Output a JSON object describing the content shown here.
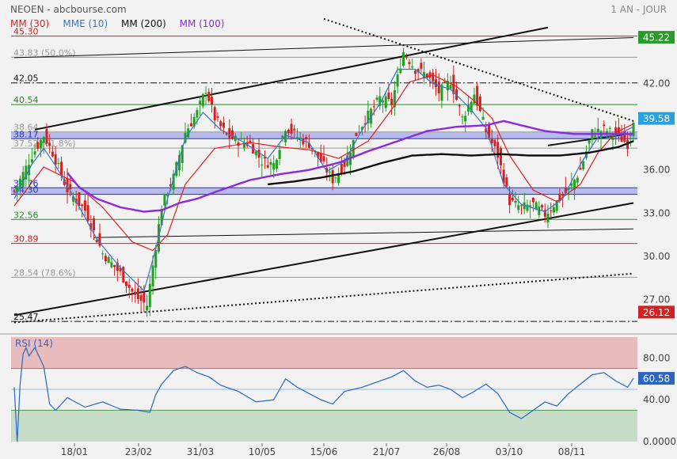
{
  "header": {
    "title": "NEOEN - abcbourse.com",
    "period": "1 AN - JOUR"
  },
  "legend": [
    {
      "label": "MM (30)",
      "color": "#e02020"
    },
    {
      "label": "MME (10)",
      "color": "#3377cc"
    },
    {
      "label": "MM (200)",
      "color": "#111111"
    },
    {
      "label": "MM (100)",
      "color": "#8a2be2"
    }
  ],
  "chart_data": {
    "type": "candlestick",
    "x_tick_labels": [
      "18/01",
      "23/02",
      "31/03",
      "10/05",
      "15/06",
      "21/07",
      "26/08",
      "03/10",
      "08/11"
    ],
    "y_axis_ticks": [
      27.0,
      30.0,
      33.0,
      36.0,
      42.0
    ],
    "ylim": [
      24.6,
      46.6
    ],
    "last_price": 39.58,
    "period_high": 45.22,
    "period_low": 26.12,
    "price_levels": [
      {
        "label": "45.30",
        "value": 45.3,
        "color": "#cc2222",
        "style": "solid"
      },
      {
        "label": "43.83 (50.0%)",
        "value": 43.83,
        "color": "#999999",
        "style": "solid"
      },
      {
        "label": "42.05",
        "value": 42.05,
        "color": "#111111",
        "style": "dashdot"
      },
      {
        "label": "40.54",
        "value": 40.54,
        "color": "#2a8a2a",
        "style": "solid"
      },
      {
        "label": "38.64",
        "value": 38.64,
        "color": "#999999",
        "style": "solid"
      },
      {
        "label": "38.17",
        "value": 38.17,
        "color": "#2233bb",
        "style": "solid"
      },
      {
        "label": "37.52 (61.8%)",
        "value": 37.52,
        "color": "#999999",
        "style": "solid"
      },
      {
        "label": "34.76",
        "value": 34.76,
        "color": "#2233bb",
        "style": "solid"
      },
      {
        "label": "34.30",
        "value": 34.3,
        "color": "#2233bb",
        "style": "solid"
      },
      {
        "label": "32.56",
        "value": 32.56,
        "color": "#2a8a2a",
        "style": "solid"
      },
      {
        "label": "30.89",
        "value": 30.89,
        "color": "#cc2222",
        "style": "solid"
      },
      {
        "label": "28.54 (78.6%)",
        "value": 28.54,
        "color": "#999999",
        "style": "solid"
      },
      {
        "label": "25.47",
        "value": 25.47,
        "color": "#111111",
        "style": "dashdot"
      }
    ],
    "bands": [
      {
        "from": 38.17,
        "to": 38.64,
        "color": "#4a55e0"
      },
      {
        "from": 34.3,
        "to": 34.76,
        "color": "#4a55e0"
      }
    ],
    "ohlc_anchor_closes": [
      [
        0,
        34.5
      ],
      [
        6,
        37.0
      ],
      [
        10,
        38.4
      ],
      [
        13,
        37.2
      ],
      [
        18,
        34.6
      ],
      [
        24,
        33.2
      ],
      [
        30,
        30.2
      ],
      [
        36,
        28.8
      ],
      [
        41,
        27.2
      ],
      [
        45,
        26.6
      ],
      [
        50,
        33.5
      ],
      [
        54,
        35.5
      ],
      [
        58,
        38.6
      ],
      [
        62,
        40.0
      ],
      [
        65,
        41.6
      ],
      [
        68,
        39.6
      ],
      [
        72,
        38.4
      ],
      [
        76,
        38.0
      ],
      [
        80,
        37.8
      ],
      [
        84,
        36.6
      ],
      [
        88,
        36.4
      ],
      [
        92,
        39.0
      ],
      [
        96,
        38.3
      ],
      [
        100,
        37.8
      ],
      [
        104,
        36.6
      ],
      [
        108,
        35.3
      ],
      [
        112,
        36.4
      ],
      [
        116,
        38.5
      ],
      [
        120,
        39.8
      ],
      [
        124,
        41.0
      ],
      [
        128,
        40.6
      ],
      [
        132,
        44.2
      ],
      [
        136,
        43.0
      ],
      [
        140,
        42.6
      ],
      [
        144,
        41.4
      ],
      [
        148,
        42.2
      ],
      [
        152,
        39.6
      ],
      [
        156,
        41.3
      ],
      [
        160,
        38.7
      ],
      [
        164,
        37.0
      ],
      [
        168,
        33.8
      ],
      [
        172,
        33.4
      ],
      [
        176,
        33.6
      ],
      [
        180,
        32.9
      ],
      [
        184,
        33.8
      ],
      [
        188,
        34.6
      ],
      [
        192,
        36.0
      ],
      [
        196,
        38.6
      ],
      [
        200,
        38.8
      ],
      [
        204,
        38.5
      ],
      [
        208,
        37.8
      ],
      [
        210,
        39.58
      ]
    ],
    "indicators": {
      "mm30_closes": [
        [
          0,
          33.5
        ],
        [
          10,
          36.2
        ],
        [
          20,
          35.2
        ],
        [
          30,
          33.4
        ],
        [
          40,
          31.0
        ],
        [
          47,
          30.4
        ],
        [
          52,
          31.5
        ],
        [
          58,
          35.0
        ],
        [
          68,
          37.5
        ],
        [
          80,
          37.9
        ],
        [
          90,
          37.6
        ],
        [
          100,
          37.4
        ],
        [
          110,
          36.8
        ],
        [
          120,
          38.0
        ],
        [
          128,
          40.2
        ],
        [
          134,
          42.1
        ],
        [
          142,
          42.6
        ],
        [
          150,
          41.8
        ],
        [
          156,
          40.8
        ],
        [
          162,
          39.6
        ],
        [
          168,
          37.0
        ],
        [
          176,
          34.6
        ],
        [
          184,
          33.8
        ],
        [
          192,
          35.0
        ],
        [
          198,
          37.2
        ],
        [
          204,
          38.6
        ],
        [
          210,
          39.2
        ]
      ],
      "mme10_closes": [
        [
          0,
          34.0
        ],
        [
          6,
          36.4
        ],
        [
          10,
          37.5
        ],
        [
          14,
          36.3
        ],
        [
          20,
          34.2
        ],
        [
          28,
          31.2
        ],
        [
          36,
          29.2
        ],
        [
          44,
          27.6
        ],
        [
          48,
          30.5
        ],
        [
          52,
          34.0
        ],
        [
          58,
          38.2
        ],
        [
          64,
          40.0
        ],
        [
          70,
          38.8
        ],
        [
          78,
          37.9
        ],
        [
          86,
          36.8
        ],
        [
          92,
          38.4
        ],
        [
          100,
          37.9
        ],
        [
          106,
          35.9
        ],
        [
          112,
          36.6
        ],
        [
          118,
          38.8
        ],
        [
          124,
          40.6
        ],
        [
          130,
          43.0
        ],
        [
          136,
          43.0
        ],
        [
          142,
          42.0
        ],
        [
          148,
          41.6
        ],
        [
          154,
          40.4
        ],
        [
          160,
          38.9
        ],
        [
          166,
          35.0
        ],
        [
          172,
          33.6
        ],
        [
          180,
          33.1
        ],
        [
          186,
          34.0
        ],
        [
          192,
          36.4
        ],
        [
          198,
          38.3
        ],
        [
          204,
          38.4
        ],
        [
          210,
          39.0
        ]
      ],
      "mm200_closes": [
        [
          86,
          35.0
        ],
        [
          95,
          35.2
        ],
        [
          105,
          35.5
        ],
        [
          115,
          35.9
        ],
        [
          125,
          36.5
        ],
        [
          135,
          37.0
        ],
        [
          145,
          37.1
        ],
        [
          155,
          37.0
        ],
        [
          165,
          37.1
        ],
        [
          175,
          37.0
        ],
        [
          185,
          37.0
        ],
        [
          195,
          37.2
        ],
        [
          205,
          37.6
        ],
        [
          210,
          38.0
        ]
      ],
      "mm100_closes": [
        [
          18,
          35.8
        ],
        [
          22,
          34.8
        ],
        [
          28,
          34.0
        ],
        [
          36,
          33.4
        ],
        [
          44,
          33.1
        ],
        [
          50,
          33.2
        ],
        [
          56,
          33.7
        ],
        [
          62,
          34.0
        ],
        [
          70,
          34.6
        ],
        [
          80,
          35.3
        ],
        [
          90,
          35.7
        ],
        [
          100,
          36.0
        ],
        [
          110,
          36.5
        ],
        [
          120,
          37.3
        ],
        [
          130,
          38.0
        ],
        [
          140,
          38.7
        ],
        [
          150,
          39.0
        ],
        [
          160,
          39.1
        ],
        [
          166,
          39.4
        ],
        [
          172,
          39.1
        ],
        [
          180,
          38.7
        ],
        [
          190,
          38.5
        ],
        [
          200,
          38.5
        ],
        [
          210,
          38.5
        ]
      ]
    },
    "trend_lines": [
      {
        "from": [
          7,
          38.8
        ],
        "to": [
          181,
          45.9
        ],
        "style": "solid"
      },
      {
        "from": [
          0,
          25.9
        ],
        "to": [
          210,
          33.7
        ],
        "style": "solid"
      },
      {
        "from": [
          27,
          31.3
        ],
        "to": [
          210,
          31.9
        ],
        "style": "solid-thin"
      },
      {
        "from": [
          0,
          43.8
        ],
        "to": [
          210,
          45.2
        ],
        "style": "solid-thin"
      },
      {
        "from": [
          0,
          25.4
        ],
        "to": [
          210,
          28.8
        ],
        "style": "dotted"
      },
      {
        "from": [
          105,
          46.5
        ],
        "to": [
          210,
          39.4
        ],
        "style": "dotted"
      },
      {
        "from": [
          181,
          37.7
        ],
        "to": [
          208,
          38.5
        ],
        "style": "solid"
      }
    ],
    "rsi": {
      "title": "RSI (14)",
      "last_value": 60.58,
      "ylim": [
        0,
        100
      ],
      "y_axis_ticks": [
        {
          "value": 80,
          "label": "80.00"
        },
        {
          "value": 40,
          "label": "40.00"
        },
        {
          "value": 0,
          "label": "0.0000"
        }
      ],
      "overbought": 70,
      "oversold": 30,
      "anchors": [
        [
          0,
          52
        ],
        [
          1,
          0
        ],
        [
          2,
          55
        ],
        [
          3,
          84
        ],
        [
          4,
          90
        ],
        [
          5,
          82
        ],
        [
          6,
          86
        ],
        [
          7,
          90
        ],
        [
          8,
          84
        ],
        [
          9,
          78
        ],
        [
          10,
          72
        ],
        [
          12,
          36
        ],
        [
          14,
          30
        ],
        [
          18,
          42
        ],
        [
          24,
          33
        ],
        [
          30,
          38
        ],
        [
          36,
          31
        ],
        [
          42,
          30
        ],
        [
          46,
          28
        ],
        [
          48,
          45
        ],
        [
          50,
          55
        ],
        [
          54,
          68
        ],
        [
          58,
          72
        ],
        [
          62,
          66
        ],
        [
          66,
          62
        ],
        [
          70,
          54
        ],
        [
          76,
          48
        ],
        [
          82,
          38
        ],
        [
          88,
          40
        ],
        [
          92,
          60
        ],
        [
          96,
          52
        ],
        [
          100,
          46
        ],
        [
          104,
          40
        ],
        [
          108,
          36
        ],
        [
          112,
          48
        ],
        [
          118,
          52
        ],
        [
          124,
          58
        ],
        [
          128,
          62
        ],
        [
          132,
          68
        ],
        [
          136,
          58
        ],
        [
          140,
          52
        ],
        [
          144,
          54
        ],
        [
          148,
          50
        ],
        [
          152,
          42
        ],
        [
          156,
          48
        ],
        [
          160,
          55
        ],
        [
          164,
          46
        ],
        [
          168,
          28
        ],
        [
          172,
          22
        ],
        [
          176,
          30
        ],
        [
          180,
          38
        ],
        [
          184,
          34
        ],
        [
          188,
          46
        ],
        [
          192,
          55
        ],
        [
          196,
          64
        ],
        [
          200,
          66
        ],
        [
          204,
          58
        ],
        [
          208,
          52
        ],
        [
          210,
          60.58
        ]
      ]
    }
  }
}
